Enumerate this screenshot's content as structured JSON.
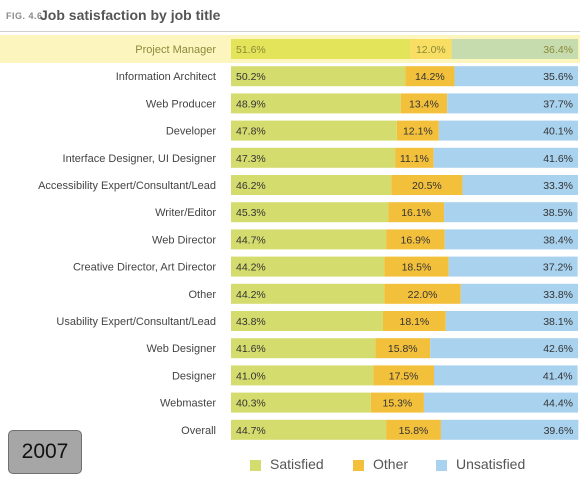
{
  "figure": {
    "label": "FIG. 4.6",
    "title": "Job satisfaction by job title",
    "year": "2007"
  },
  "colors": {
    "satisfied": "#d5dc6e",
    "other": "#f3c03c",
    "unsatisfied": "#a9d2ee",
    "highlight_band": "#fcf6be",
    "highlight_satisfied": "#e3e45a",
    "highlight_other": "#f8de63",
    "highlight_unsatisfied": "#c7dcae"
  },
  "chart_data": {
    "type": "bar",
    "orientation": "horizontal",
    "stacked": true,
    "xlim": [
      0,
      100
    ],
    "unit": "%",
    "highlighted_category": "Project Manager",
    "categories": [
      "Project Manager",
      "Information Architect",
      "Web Producer",
      "Developer",
      "Interface Designer, UI Designer",
      "Accessibility Expert/Consultant/Lead",
      "Writer/Editor",
      "Web Director",
      "Creative Director, Art Director",
      "Other",
      "Usability Expert/Consultant/Lead",
      "Web Designer",
      "Designer",
      "Webmaster",
      "Overall"
    ],
    "series": [
      {
        "name": "Satisfied",
        "values": [
          51.6,
          50.2,
          48.9,
          47.8,
          47.3,
          46.2,
          45.3,
          44.7,
          44.2,
          44.2,
          43.8,
          41.6,
          41.0,
          40.3,
          44.7
        ],
        "labels": [
          "51.6%",
          "50.2%",
          "48.9%",
          "47.8%",
          "47.3%",
          "46.2%",
          "45.3%",
          "44.7%",
          "44.2%",
          "44.2%",
          "43.8%",
          "41.6%",
          "41.0%",
          "40.3%",
          "44.7%"
        ]
      },
      {
        "name": "Other",
        "values": [
          12.0,
          14.2,
          13.4,
          12.1,
          11.1,
          20.5,
          16.1,
          16.9,
          18.5,
          22.0,
          18.1,
          15.8,
          17.5,
          15.3,
          15.8
        ],
        "labels": [
          "12.0%",
          "14.2%",
          "13.4%",
          "12.1%",
          "11.1%",
          "20.5%",
          "16.1%",
          "16.9%",
          "18.5%",
          "22.0%",
          "18.1%",
          "15.8%",
          "17.5%",
          "15.3%",
          "15.8%"
        ]
      },
      {
        "name": "Unsatisfied",
        "values": [
          36.4,
          35.6,
          37.7,
          40.1,
          41.6,
          33.3,
          38.5,
          38.4,
          37.2,
          33.8,
          38.1,
          42.6,
          41.4,
          44.4,
          39.6
        ],
        "labels": [
          "36.4%",
          "35.6%",
          "37.7%",
          "40.1%",
          "41.6%",
          "33.3%",
          "38.5%",
          "38.4%",
          "37.2%",
          "33.8%",
          "38.1%",
          "42.6%",
          "41.4%",
          "44.4%",
          "39.6%"
        ]
      }
    ],
    "legend_position": "bottom-right",
    "grid": false
  }
}
